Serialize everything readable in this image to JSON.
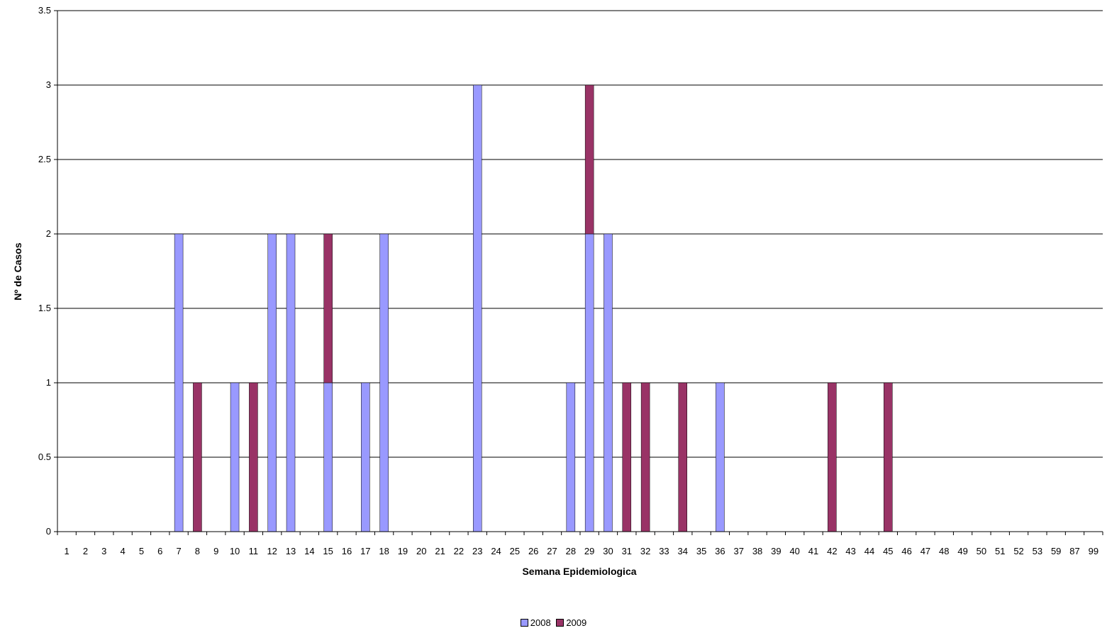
{
  "chart_data": {
    "type": "bar",
    "stacked": true,
    "xlabel": "Semana Epidemiologica",
    "ylabel": "Nº de Casos",
    "ylim": [
      0,
      3.5
    ],
    "yticks": [
      "0",
      "0.5",
      "1",
      "1.5",
      "2",
      "2.5",
      "3",
      "3.5"
    ],
    "grid": true,
    "legend_position": "bottom",
    "categories": [
      "1",
      "2",
      "3",
      "4",
      "5",
      "6",
      "7",
      "8",
      "9",
      "10",
      "11",
      "12",
      "13",
      "14",
      "15",
      "16",
      "17",
      "18",
      "19",
      "20",
      "21",
      "22",
      "23",
      "24",
      "25",
      "26",
      "27",
      "28",
      "29",
      "30",
      "31",
      "32",
      "33",
      "34",
      "35",
      "36",
      "37",
      "38",
      "39",
      "40",
      "41",
      "42",
      "43",
      "44",
      "45",
      "46",
      "47",
      "48",
      "49",
      "50",
      "51",
      "52",
      "53",
      "59",
      "87",
      "99"
    ],
    "series": [
      {
        "name": "2008",
        "color": "#9999ff",
        "values": [
          0,
          0,
          0,
          0,
          0,
          0,
          2,
          0,
          0,
          1,
          0,
          2,
          2,
          0,
          1,
          0,
          1,
          2,
          0,
          0,
          0,
          0,
          3,
          0,
          0,
          0,
          0,
          1,
          2,
          2,
          0,
          0,
          0,
          0,
          0,
          1,
          0,
          0,
          0,
          0,
          0,
          0,
          0,
          0,
          0,
          0,
          0,
          0,
          0,
          0,
          0,
          0,
          0,
          0,
          0,
          0
        ]
      },
      {
        "name": "2009",
        "color": "#993366",
        "values": [
          0,
          0,
          0,
          0,
          0,
          0,
          0,
          1,
          0,
          0,
          1,
          0,
          0,
          0,
          1,
          0,
          0,
          0,
          0,
          0,
          0,
          0,
          0,
          0,
          0,
          0,
          0,
          0,
          1,
          0,
          1,
          1,
          0,
          1,
          0,
          0,
          0,
          0,
          0,
          0,
          0,
          1,
          0,
          0,
          1,
          0,
          0,
          0,
          0,
          0,
          0,
          0,
          0,
          0,
          0,
          0
        ]
      }
    ]
  }
}
